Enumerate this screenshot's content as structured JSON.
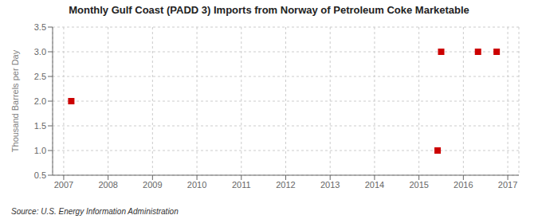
{
  "chart_data": {
    "type": "scatter",
    "title": "Monthly Gulf Coast (PADD 3) Imports from Norway of Petroleum Coke Marketable",
    "ylabel": "Thousand Barrels per Day",
    "annotations": [
      "Source: U.S. Energy Information Administration"
    ],
    "x": [
      2007.17,
      2015.42,
      2015.5,
      2016.33,
      2016.75
    ],
    "values": [
      2.0,
      1.0,
      3.0,
      3.0,
      3.0
    ],
    "color": "#cc0000",
    "marker": "square",
    "xlim": [
      2006.75,
      2017.25
    ],
    "ylim": [
      0.5,
      3.5
    ],
    "xticks": [
      2007,
      2008,
      2009,
      2010,
      2011,
      2012,
      2013,
      2014,
      2015,
      2016,
      2017
    ],
    "yticks": [
      0.5,
      {
        "value": 1.0,
        "label": "1.0"
      },
      1.5,
      {
        "value": 2.0,
        "label": "2.0"
      },
      2.5,
      {
        "value": 3.0,
        "label": "3.0"
      },
      3.5
    ],
    "grid": true
  }
}
